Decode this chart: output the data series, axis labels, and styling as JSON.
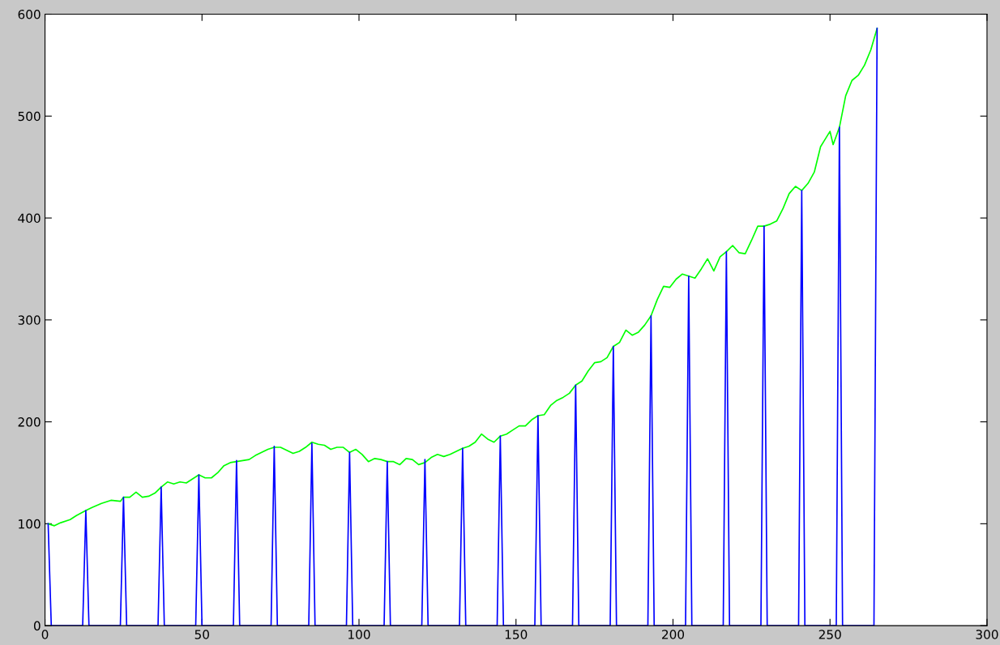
{
  "chart_data": {
    "type": "line",
    "xlim": [
      0,
      300
    ],
    "xticks": [
      0,
      50,
      100,
      150,
      200,
      250,
      300
    ],
    "ylim": [
      0,
      600
    ],
    "yticks": [
      0,
      100,
      200,
      300,
      400,
      500,
      600
    ],
    "grid": false,
    "series": [
      {
        "color": "#00ff00",
        "x": [
          1,
          3,
          5,
          8,
          10,
          13,
          15,
          18,
          21,
          24,
          25,
          27,
          29,
          31,
          33,
          35,
          37,
          39,
          41,
          43,
          45,
          47,
          49,
          51,
          53,
          55,
          57,
          59,
          61,
          63,
          65,
          67,
          69,
          71,
          73,
          75,
          77,
          79,
          81,
          83,
          85,
          87,
          89,
          91,
          93,
          95,
          97,
          99,
          101,
          103,
          105,
          107,
          109,
          111,
          113,
          115,
          117,
          119,
          121,
          123,
          125,
          127,
          129,
          131,
          133,
          135,
          137,
          139,
          141,
          143,
          145,
          147,
          149,
          151,
          153,
          155,
          157,
          159,
          161,
          163,
          165,
          167,
          169,
          171,
          173,
          175,
          177,
          179,
          181,
          183,
          185,
          187,
          189,
          191,
          193,
          195,
          197,
          199,
          201,
          203,
          205,
          207,
          209,
          211,
          213,
          215,
          217,
          219,
          221,
          223,
          225,
          227,
          229,
          231,
          233,
          235,
          237,
          239,
          241,
          243,
          245,
          247,
          249,
          250,
          251,
          253,
          255,
          257,
          259,
          261,
          263,
          265
        ],
        "values": [
          100,
          98,
          101,
          104,
          108,
          113,
          116,
          120,
          123,
          122,
          126,
          126,
          131,
          126,
          127,
          130,
          136,
          141,
          139,
          141,
          140,
          144,
          148,
          145,
          145,
          150,
          157,
          160,
          161,
          162,
          163,
          167,
          170,
          173,
          175,
          175,
          172,
          169,
          171,
          175,
          180,
          178,
          177,
          173,
          175,
          175,
          170,
          173,
          168,
          161,
          164,
          163,
          161,
          161,
          158,
          164,
          163,
          158,
          160,
          165,
          168,
          166,
          168,
          171,
          174,
          176,
          180,
          188,
          183,
          180,
          186,
          188,
          192,
          196,
          196,
          202,
          206,
          207,
          216,
          221,
          224,
          228,
          236,
          240,
          250,
          258,
          259,
          263,
          274,
          278,
          290,
          285,
          288,
          295,
          304,
          320,
          333,
          332,
          340,
          345,
          343,
          341,
          350,
          360,
          348,
          362,
          367,
          373,
          366,
          365,
          378,
          392,
          392,
          394,
          397,
          409,
          424,
          431,
          427,
          434,
          445,
          470,
          480,
          485,
          472,
          489,
          520,
          535,
          540,
          550,
          565,
          586
        ]
      },
      {
        "color": "#0000ff",
        "x": [
          1,
          2,
          12,
          13,
          14,
          24,
          25,
          26,
          36,
          37,
          38,
          48,
          49,
          50,
          60,
          61,
          62,
          72,
          73,
          74,
          84,
          85,
          86,
          96,
          97,
          98,
          108,
          109,
          110,
          120,
          121,
          122,
          132,
          133,
          134,
          144,
          145,
          146,
          156,
          157,
          158,
          168,
          169,
          170,
          180,
          181,
          182,
          192,
          193,
          194,
          204,
          205,
          206,
          216,
          217,
          218,
          228,
          229,
          230,
          240,
          241,
          242,
          252,
          253,
          254,
          264,
          265
        ],
        "values": [
          100,
          0,
          0,
          113,
          0,
          0,
          126,
          0,
          0,
          136,
          0,
          0,
          148,
          0,
          0,
          162,
          0,
          0,
          176,
          0,
          0,
          179,
          0,
          0,
          170,
          0,
          0,
          161,
          0,
          0,
          163,
          0,
          0,
          174,
          0,
          0,
          186,
          0,
          0,
          206,
          0,
          0,
          236,
          0,
          0,
          274,
          0,
          0,
          304,
          0,
          0,
          343,
          0,
          0,
          367,
          0,
          0,
          392,
          0,
          0,
          427,
          0,
          0,
          489,
          0,
          0,
          586
        ]
      }
    ]
  }
}
